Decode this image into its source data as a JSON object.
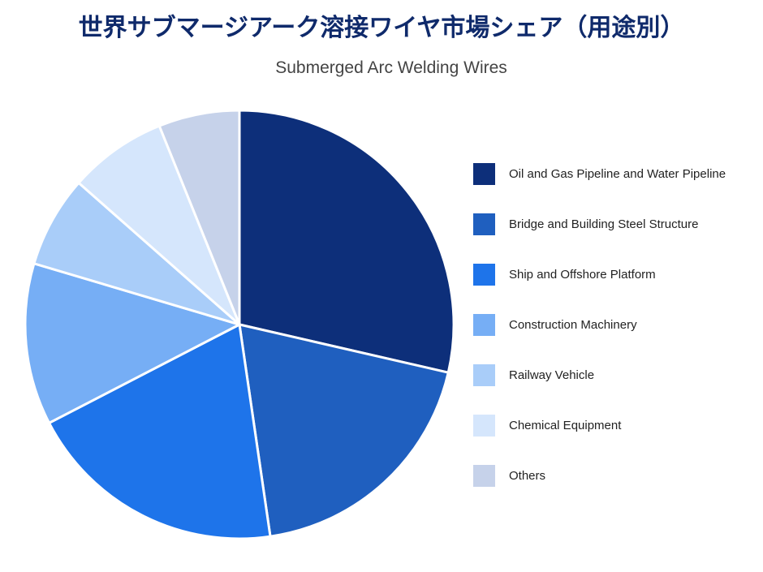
{
  "chart_data": {
    "type": "pie",
    "title": "世界サブマージアーク溶接ワイヤ市場シェア（用途別）",
    "subtitle": "Submerged Arc Welding Wires",
    "categories": [
      "Oil and Gas Pipeline and Water Pipeline",
      "Bridge and Building Steel Structure",
      "Ship and Offshore Platform",
      "Construction Machinery",
      "Railway Vehicle",
      "Chemical Equipment",
      "Others"
    ],
    "values": [
      28.6,
      19.1,
      19.7,
      12.2,
      6.9,
      7.4,
      6.1
    ],
    "colors": [
      "#0d2f7a",
      "#1f5fbf",
      "#1e74ea",
      "#76aef5",
      "#a9cdf9",
      "#d5e6fc",
      "#c6d2ea"
    ],
    "legend": "right"
  }
}
